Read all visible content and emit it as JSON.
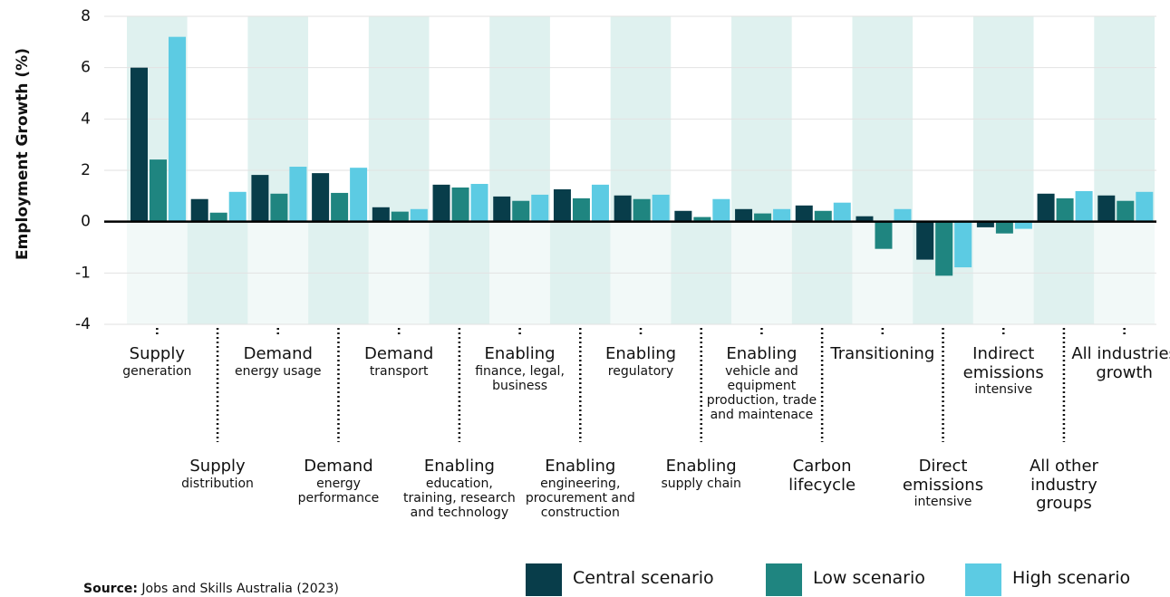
{
  "chart_data": {
    "type": "bar",
    "y_label": "Employment Growth (%)",
    "categories": [
      "Supply",
      "Supply",
      "Demand",
      "Demand",
      "Demand",
      "Enabling",
      "Enabling",
      "Enabling",
      "Enabling",
      "Enabling",
      "Enabling",
      "Carbon lifecycle",
      "Transitioning",
      "Direct emissions",
      "Indirect emissions",
      "All other industry groups",
      "All industries growth"
    ],
    "category_subtitles": [
      "generation",
      "distribution",
      "energy usage",
      "energy performance",
      "transport",
      "education, training, research and technology",
      "finance, legal, business",
      "engineering, procurement and construction",
      "regulatory",
      "supply chain",
      "vehicle and equipment production, trade and maintenace",
      null,
      null,
      "intensive",
      "intensive",
      null,
      null
    ],
    "series": [
      {
        "name": "Central scenario",
        "color": "#083d4a",
        "values": [
          6.0,
          0.88,
          1.82,
          1.89,
          0.56,
          1.44,
          0.98,
          1.26,
          1.02,
          0.42,
          0.49,
          0.63,
          0.21,
          -0.74,
          -0.11,
          1.09,
          1.02
        ]
      },
      {
        "name": "Low scenario",
        "color": "#1f8580",
        "values": [
          2.42,
          0.35,
          1.09,
          1.12,
          0.39,
          1.33,
          0.81,
          0.91,
          0.88,
          0.18,
          0.32,
          0.42,
          -0.53,
          -1.16,
          -0.23,
          0.91,
          0.81
        ]
      },
      {
        "name": "High scenario",
        "color": "#5ccbe3",
        "values": [
          7.2,
          1.16,
          2.14,
          2.1,
          0.49,
          1.47,
          1.05,
          1.44,
          1.05,
          0.88,
          0.49,
          0.74,
          0.49,
          -0.89,
          -0.14,
          1.19,
          1.16
        ]
      }
    ],
    "ylim": [
      -4,
      8
    ],
    "yticks": [
      -4,
      -1,
      0,
      2,
      4,
      6,
      8
    ],
    "grid": true,
    "source_label": "Source:",
    "source": "Jobs and Skills Australia (2023)"
  }
}
